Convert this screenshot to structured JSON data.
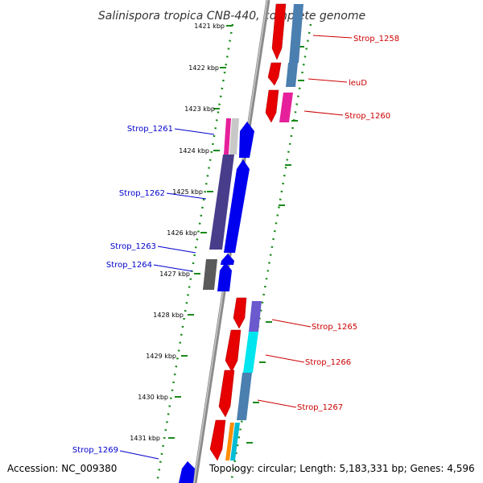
{
  "title": "Salinispora tropica CNB-440, complete genome",
  "footer": {
    "accession": "Accession: NC_009380",
    "summary": "Topology: circular; Length: 5,183,331 bp; Genes: 4,596"
  },
  "colors": {
    "backbone": "#8a8a8a",
    "tick": "#1a8a1a",
    "forward_label": "#cc0000",
    "reverse_label": "#0000cc"
  },
  "kbp_labels": [
    "1421 kbp",
    "1422 kbp",
    "1423 kbp",
    "1424 kbp",
    "1425 kbp",
    "1426 kbp",
    "1427 kbp",
    "1428 kbp",
    "1429 kbp",
    "1430 kbp",
    "1431 kbp"
  ],
  "genes": [
    {
      "name": "Strop_1258",
      "strand": "forward"
    },
    {
      "name": "leuD",
      "strand": "forward"
    },
    {
      "name": "Strop_1260",
      "strand": "forward"
    },
    {
      "name": "Strop_1261",
      "strand": "reverse"
    },
    {
      "name": "Strop_1262",
      "strand": "reverse"
    },
    {
      "name": "Strop_1263",
      "strand": "reverse"
    },
    {
      "name": "Strop_1264",
      "strand": "reverse"
    },
    {
      "name": "Strop_1265",
      "strand": "forward"
    },
    {
      "name": "Strop_1266",
      "strand": "forward"
    },
    {
      "name": "Strop_1267",
      "strand": "forward"
    },
    {
      "name": "Strop_1269",
      "strand": "reverse"
    }
  ]
}
